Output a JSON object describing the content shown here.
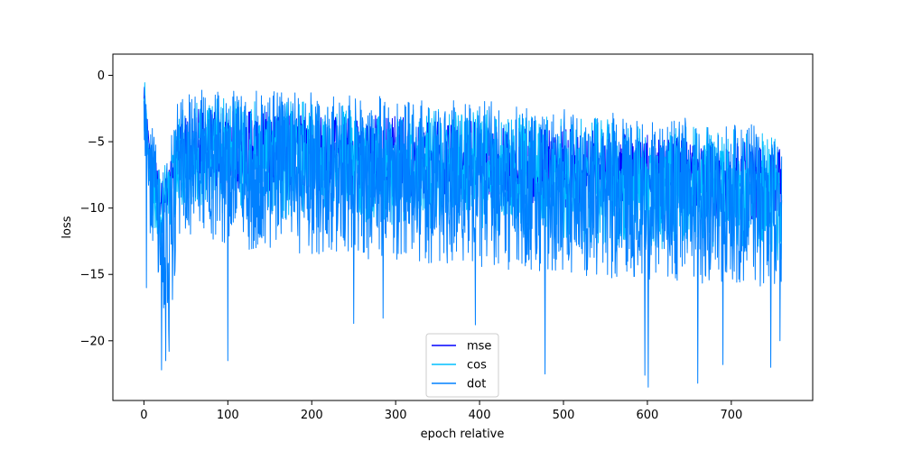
{
  "chart_data": {
    "type": "line",
    "title": "",
    "xlabel": "epoch relative",
    "ylabel": "loss",
    "xlim": [
      -37,
      797
    ],
    "ylim": [
      -24.5,
      1.6
    ],
    "xticks": [
      0,
      100,
      200,
      300,
      400,
      500,
      600,
      700
    ],
    "yticks": [
      0,
      -5,
      -10,
      -15,
      -20
    ],
    "grid": false,
    "legend_position": "lower-center",
    "x_max": 760,
    "series": [
      {
        "name": "mse",
        "color": "#0000ff",
        "envelope": {
          "x": [
            0,
            5,
            10,
            20,
            30,
            40,
            60,
            100,
            200,
            300,
            400,
            500,
            600,
            700,
            760
          ],
          "upper": [
            0.3,
            -4,
            -5,
            -8,
            -7,
            -4,
            -2.5,
            -2.5,
            -3,
            -3,
            -3.5,
            -4,
            -4.5,
            -5,
            -5
          ],
          "lower": [
            -3.5,
            -5.5,
            -9,
            -11,
            -10,
            -8,
            -8,
            -8.5,
            -9,
            -9.5,
            -9.5,
            -10,
            -10.5,
            -11,
            -11
          ]
        }
      },
      {
        "name": "cos",
        "color": "#00bfff",
        "envelope": {
          "x": [
            0,
            5,
            10,
            20,
            30,
            40,
            60,
            100,
            200,
            300,
            400,
            500,
            600,
            700,
            760
          ],
          "upper": [
            0.4,
            -3.5,
            -4.5,
            -7.5,
            -6,
            -3,
            -1.5,
            -1.5,
            -2,
            -2.5,
            -2.5,
            -3,
            -3.5,
            -4,
            -4.5
          ],
          "lower": [
            -4,
            -7,
            -11,
            -13,
            -12,
            -10,
            -10,
            -10.5,
            -11,
            -11.5,
            -12,
            -12.5,
            -13,
            -13.5,
            -14
          ]
        }
      },
      {
        "name": "dot",
        "color": "#0080ff",
        "envelope": {
          "x": [
            0,
            5,
            10,
            20,
            30,
            40,
            60,
            100,
            200,
            300,
            400,
            500,
            600,
            700,
            760
          ],
          "upper": [
            0.5,
            -3,
            -4,
            -7,
            -5.5,
            -2,
            -0.8,
            -0.8,
            -1.2,
            -1.5,
            -1.8,
            -2.5,
            -3,
            -3.5,
            -4
          ],
          "lower": [
            -5,
            -9,
            -15,
            -18,
            -20,
            -13,
            -12,
            -13,
            -13.5,
            -14,
            -14.5,
            -15,
            -15.5,
            -16,
            -16
          ]
        },
        "spikes": [
          [
            3,
            -16
          ],
          [
            21,
            -22.2
          ],
          [
            26,
            -21.5
          ],
          [
            30,
            -20.8
          ],
          [
            100,
            -21.5
          ],
          [
            250,
            -18.7
          ],
          [
            285,
            -18.3
          ],
          [
            395,
            -18.8
          ],
          [
            478,
            -22.5
          ],
          [
            597,
            -22.6
          ],
          [
            601,
            -23.5
          ],
          [
            660,
            -23.2
          ],
          [
            690,
            -21.8
          ],
          [
            747,
            -22
          ],
          [
            758,
            -20
          ]
        ]
      }
    ]
  }
}
